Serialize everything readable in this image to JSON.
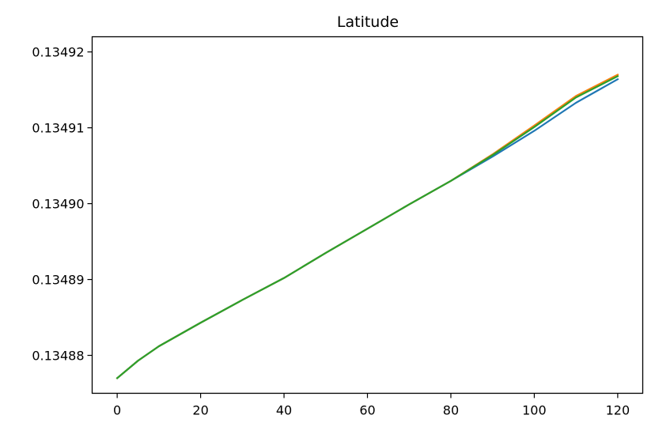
{
  "chart_data": {
    "type": "line",
    "title": "Latitude",
    "xlabel": "",
    "ylabel": "",
    "xlim": [
      -6,
      126
    ],
    "ylim": [
      0.134875,
      0.134922
    ],
    "grid": false,
    "legend": "none",
    "x_ticks": [
      0,
      20,
      40,
      60,
      80,
      100,
      120
    ],
    "x_tick_labels": [
      "0",
      "20",
      "40",
      "60",
      "80",
      "100",
      "120"
    ],
    "y_ticks": [
      0.13488,
      0.13489,
      0.1349,
      0.13491,
      0.13492
    ],
    "y_tick_labels": [
      "0.13488",
      "0.13489",
      "0.13490",
      "0.13491",
      "0.13492"
    ],
    "series": [
      {
        "color": "#1f77b4",
        "x": [
          0,
          5,
          10,
          20,
          30,
          40,
          50,
          60,
          70,
          80,
          90,
          100,
          110,
          120
        ],
        "y": [
          0.134877,
          0.1348793,
          0.1348812,
          0.1348843,
          0.1348873,
          0.1348902,
          0.1348935,
          0.1348967,
          0.1348999,
          0.134903,
          0.1349062,
          0.1349096,
          0.1349133,
          0.1349164
        ]
      },
      {
        "color": "#ff7f0e",
        "x": [
          0,
          5,
          10,
          20,
          30,
          40,
          50,
          60,
          70,
          80,
          90,
          100,
          110,
          120
        ],
        "y": [
          0.134877,
          0.1348793,
          0.1348812,
          0.1348843,
          0.1348873,
          0.1348902,
          0.1348935,
          0.1348967,
          0.1348999,
          0.134903,
          0.1349065,
          0.1349103,
          0.1349142,
          0.134917
        ]
      },
      {
        "color": "#2ca02c",
        "x": [
          0,
          5,
          10,
          20,
          30,
          40,
          50,
          60,
          70,
          80,
          90,
          100,
          110,
          120
        ],
        "y": [
          0.134877,
          0.1348793,
          0.1348812,
          0.1348843,
          0.1348873,
          0.1348902,
          0.1348935,
          0.1348967,
          0.1348999,
          0.134903,
          0.1349064,
          0.1349101,
          0.134914,
          0.1349168
        ]
      }
    ]
  }
}
